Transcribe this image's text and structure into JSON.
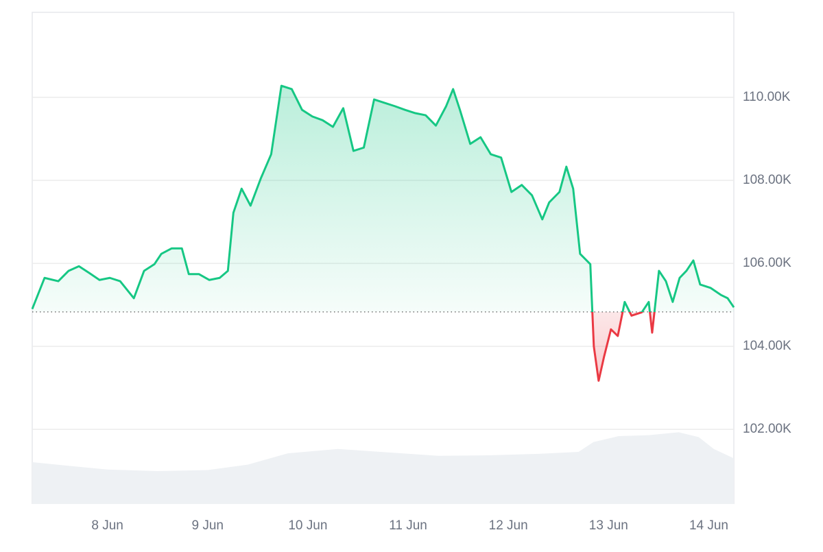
{
  "chart_data": {
    "type": "line",
    "x": [
      7.25,
      7.373,
      7.51,
      7.613,
      7.716,
      7.818,
      7.921,
      8.024,
      8.127,
      8.264,
      8.366,
      8.469,
      8.538,
      8.64,
      8.743,
      8.812,
      8.914,
      9.017,
      9.12,
      9.202,
      9.257,
      9.339,
      9.428,
      9.531,
      9.634,
      9.736,
      9.839,
      9.942,
      10.045,
      10.147,
      10.25,
      10.353,
      10.455,
      10.558,
      10.661,
      10.764,
      10.866,
      10.969,
      11.072,
      11.175,
      11.277,
      11.38,
      11.449,
      11.517,
      11.62,
      11.723,
      11.825,
      11.928,
      12.031,
      12.134,
      12.236,
      12.339,
      12.408,
      12.51,
      12.579,
      12.647,
      12.716,
      12.818,
      12.853,
      12.901,
      12.955,
      13.024,
      13.092,
      13.161,
      13.229,
      13.332,
      13.401,
      13.435,
      13.503,
      13.572,
      13.64,
      13.709,
      13.777,
      13.846,
      13.914,
      14.017,
      14.12,
      14.188,
      14.25
    ],
    "series": [
      {
        "values": [
          104900,
          105650,
          105570,
          105820,
          105930,
          105770,
          105600,
          105650,
          105570,
          105160,
          105820,
          105980,
          106230,
          106360,
          106360,
          105740,
          105740,
          105600,
          105650,
          105820,
          107220,
          107800,
          107390,
          108050,
          108630,
          110280,
          110200,
          109700,
          109540,
          109450,
          109290,
          109740,
          108710,
          108790,
          109950,
          109870,
          109790,
          109700,
          109620,
          109570,
          109320,
          109790,
          110200,
          109700,
          108880,
          109040,
          108630,
          108550,
          107720,
          107890,
          107640,
          107060,
          107470,
          107720,
          108330,
          107800,
          106230,
          105980,
          104000,
          103170,
          103750,
          104410,
          104250,
          105070,
          104740,
          104820,
          105070,
          104330,
          105820,
          105570,
          105070,
          105650,
          105820,
          106070,
          105490,
          105410,
          105240,
          105160,
          104940
        ],
        "color": "#16c784",
        "down_color": "#ea3943"
      }
    ],
    "baseline": 104830,
    "volume": {
      "x": [
        7.25,
        7.6,
        8.0,
        8.5,
        9.0,
        9.4,
        9.8,
        10.3,
        10.8,
        11.3,
        11.8,
        12.3,
        12.7,
        12.85,
        13.1,
        13.4,
        13.7,
        13.9,
        14.05,
        14.25
      ],
      "values": [
        8.5,
        7.8,
        7.0,
        6.7,
        6.9,
        8.0,
        10.3,
        11.2,
        10.5,
        9.8,
        9.9,
        10.2,
        10.6,
        12.6,
        13.8,
        14.0,
        14.6,
        13.6,
        11.2,
        9.3
      ],
      "color": "#eef1f4",
      "axis": "y2"
    },
    "xlim": [
      7.25,
      14.25
    ],
    "xticks": [
      {
        "value": 8,
        "label": "8 Jun"
      },
      {
        "value": 9,
        "label": "9 Jun"
      },
      {
        "value": 10,
        "label": "10 Jun"
      },
      {
        "value": 11,
        "label": "11 Jun"
      },
      {
        "value": 12,
        "label": "12 Jun"
      },
      {
        "value": 13,
        "label": "13 Jun"
      },
      {
        "value": 14,
        "label": "14 Jun"
      }
    ],
    "ylim": [
      100200,
      112050
    ],
    "yticks": [
      {
        "value": 102000,
        "label": "102.00K"
      },
      {
        "value": 104000,
        "label": "104.00K"
      },
      {
        "value": 106000,
        "label": "106.00K"
      },
      {
        "value": 108000,
        "label": "108.00K"
      },
      {
        "value": 110000,
        "label": "110.00K"
      }
    ],
    "y2lim": [
      0,
      100
    ],
    "grid": true
  }
}
